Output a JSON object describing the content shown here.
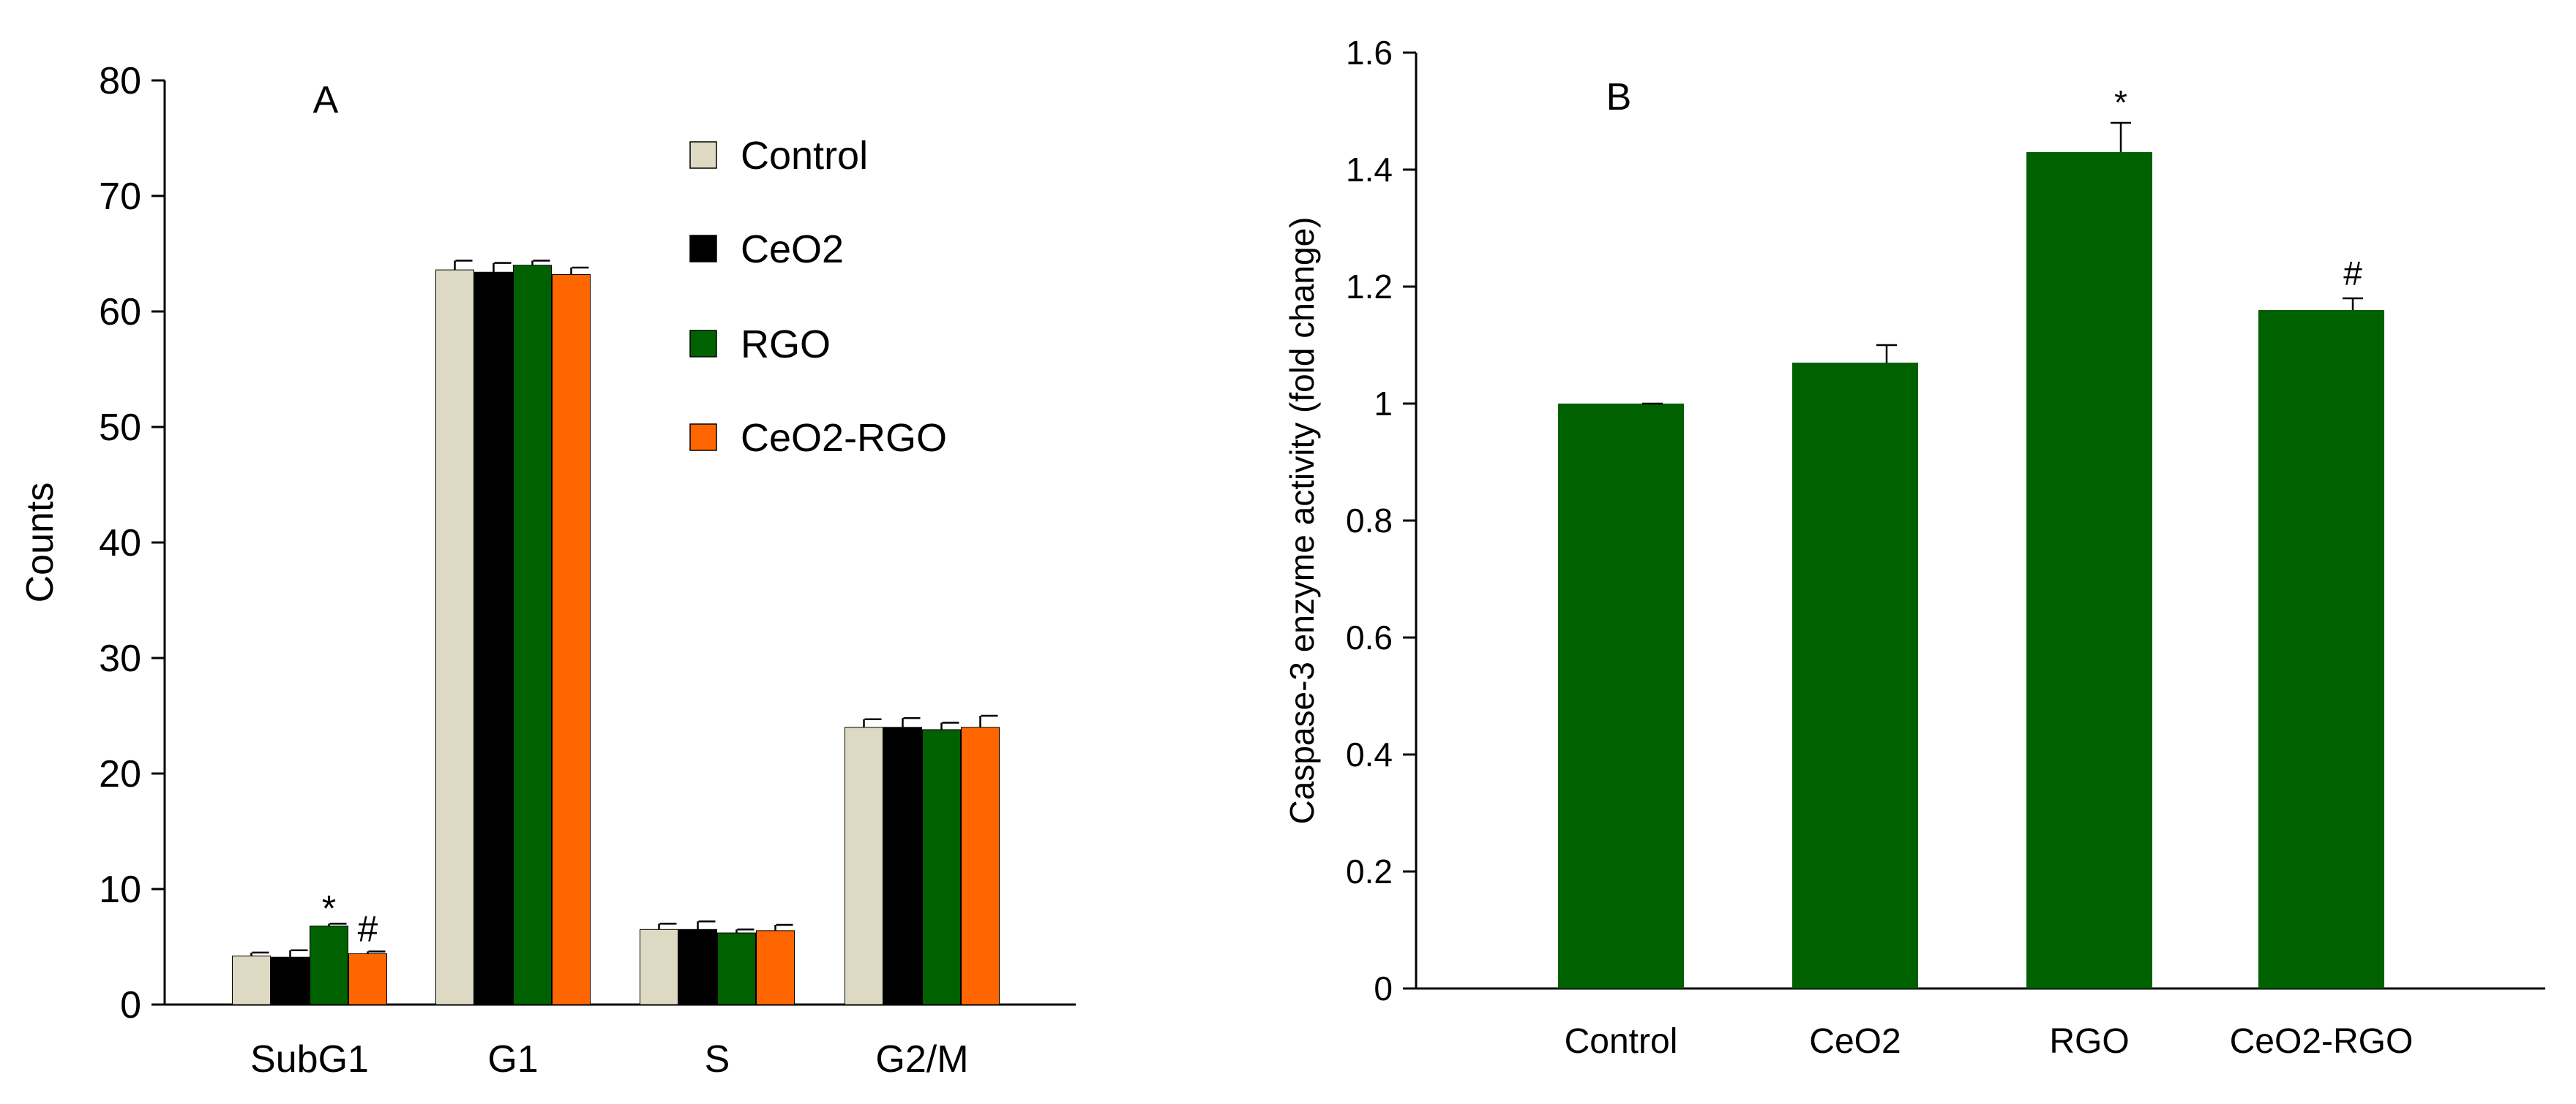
{
  "chart_data": [
    {
      "type": "bar",
      "panel_label": "A",
      "title": "",
      "xlabel": "",
      "ylabel": "Counts",
      "ylim": [
        0,
        80
      ],
      "yticks": [
        0,
        10,
        20,
        30,
        40,
        50,
        60,
        70,
        80
      ],
      "categories": [
        "SubG1",
        "G1",
        "S",
        "G2/M"
      ],
      "series": [
        {
          "name": "Control",
          "color": "#ddd9c3",
          "values": [
            4.2,
            63.6,
            6.5,
            24.0
          ],
          "errors": [
            0.3,
            0.8,
            0.5,
            0.7
          ]
        },
        {
          "name": "CeO2",
          "color": "#000000",
          "values": [
            4.1,
            63.4,
            6.5,
            24.0
          ],
          "errors": [
            0.6,
            0.8,
            0.7,
            0.8
          ]
        },
        {
          "name": "RGO",
          "color": "#006100",
          "values": [
            6.8,
            64.0,
            6.2,
            23.8
          ],
          "errors": [
            0.2,
            0.4,
            0.3,
            0.6
          ]
        },
        {
          "name": "CeO2-RGO",
          "color": "#ff6600",
          "values": [
            4.4,
            63.2,
            6.4,
            24.0
          ],
          "errors": [
            0.2,
            0.6,
            0.5,
            1.0
          ]
        }
      ],
      "annotations": [
        {
          "text": "*",
          "category": "SubG1",
          "series": "RGO"
        },
        {
          "text": "#",
          "category": "SubG1",
          "series": "CeO2-RGO"
        }
      ],
      "legend_position": "top-right",
      "grid": false
    },
    {
      "type": "bar",
      "panel_label": "B",
      "title": "",
      "xlabel": "",
      "ylabel": "Caspase-3 enzyme activity (fold change)",
      "ylim": [
        0,
        1.6
      ],
      "yticks": [
        "0",
        "0.2",
        "0.4",
        "0.6",
        "0.8",
        "1",
        "1.2",
        "1.4",
        "1.6"
      ],
      "categories": [
        "Control",
        "CeO2",
        "RGO",
        "CeO2-RGO"
      ],
      "color": "#006100",
      "values": [
        1.0,
        1.07,
        1.43,
        1.16
      ],
      "errors": [
        0.0,
        0.03,
        0.05,
        0.02
      ],
      "annotations": [
        {
          "text": "*",
          "category": "RGO"
        },
        {
          "text": "#",
          "category": "CeO2-RGO"
        }
      ],
      "grid": false
    }
  ]
}
